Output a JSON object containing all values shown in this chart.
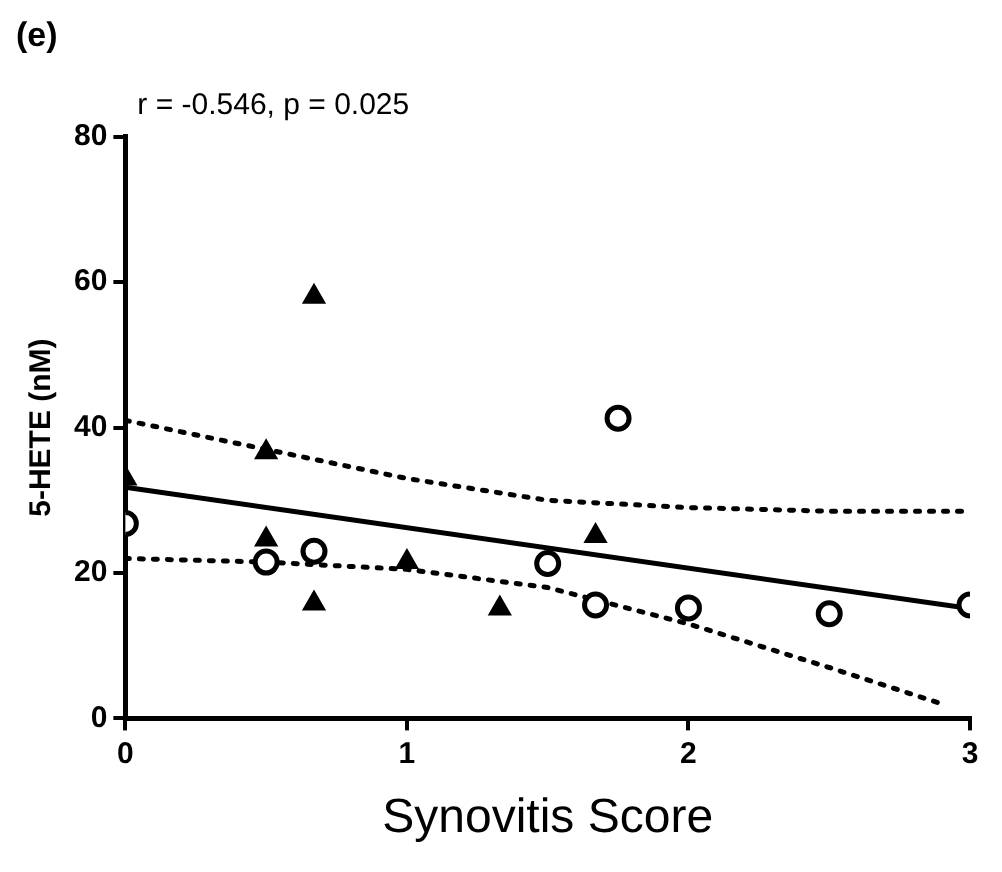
{
  "chart_data": {
    "type": "scatter",
    "title": "(e)",
    "annotations": [
      "r = -0.546, p = 0.025"
    ],
    "xlabel": "Synovitis Score",
    "ylabel": "5-HETE (nM)",
    "xlim": [
      0,
      3
    ],
    "xticks": [
      0,
      1,
      2,
      3
    ],
    "ylim": [
      0,
      80
    ],
    "yticks": [
      0,
      20,
      40,
      60,
      80
    ],
    "grid": false,
    "legend": false,
    "series": [
      {
        "type": "scatter",
        "marker": "triangle",
        "color": "#000000",
        "x": [
          0,
          0.5,
          0.5,
          0.67,
          0.67,
          1,
          1.33,
          1.67
        ],
        "values": [
          33,
          36.6,
          24.6,
          58,
          15.8,
          21.5,
          15.1,
          25.1
        ]
      },
      {
        "type": "scatter",
        "marker": "circle",
        "color": "#000000",
        "x": [
          0,
          0.5,
          0.67,
          1.5,
          1.67,
          1.75,
          2,
          2.5,
          3
        ],
        "values": [
          26.8,
          21.5,
          23,
          21.3,
          15.6,
          41.3,
          15.2,
          14.4,
          15.6
        ]
      },
      {
        "type": "line",
        "marker": "none",
        "line_style": "solid",
        "color": "#000000",
        "x": [
          0,
          3
        ],
        "values": [
          31.8,
          15.1
        ]
      },
      {
        "type": "line",
        "marker": "none",
        "line_style": "dotted",
        "color": "#000000",
        "x": [
          0,
          0.5,
          1,
          1.5,
          2,
          2.5,
          3
        ],
        "values": [
          41,
          37,
          33,
          30,
          29,
          28.5,
          28.5
        ]
      },
      {
        "type": "line",
        "marker": "none",
        "line_style": "dotted",
        "color": "#000000",
        "x": [
          0,
          0.5,
          1,
          1.5,
          2,
          2.5,
          2.9
        ],
        "values": [
          22,
          21.5,
          20.5,
          18,
          13,
          7,
          2
        ]
      }
    ]
  }
}
